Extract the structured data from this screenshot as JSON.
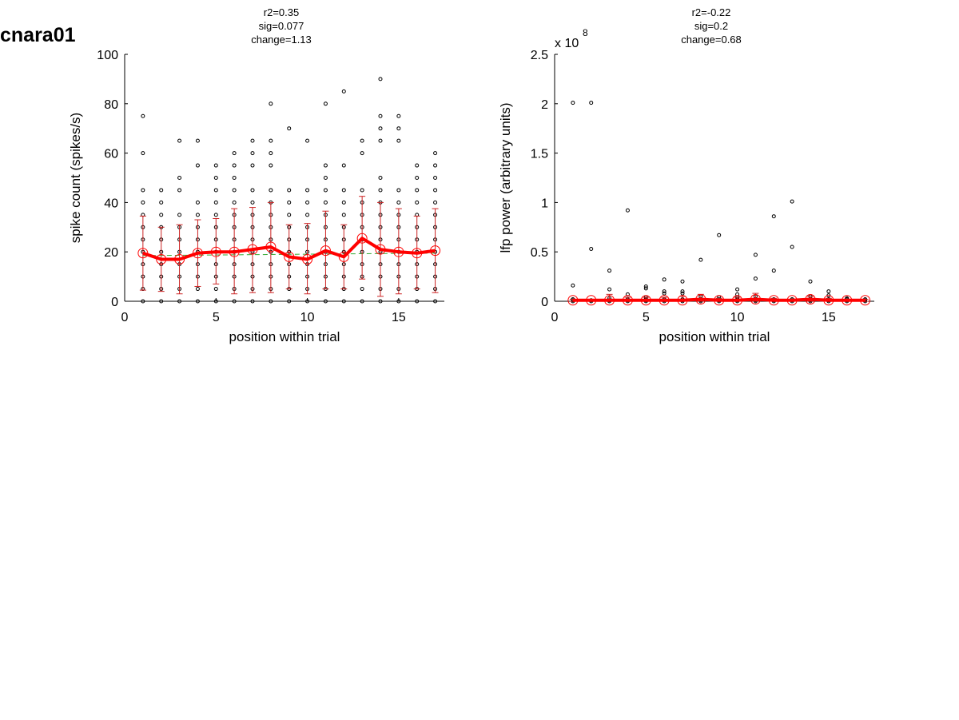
{
  "figure_title": "cnara01",
  "chart_data": [
    {
      "type": "scatter",
      "stats": [
        "r2=0.35",
        "sig=0.077",
        "change=1.13"
      ],
      "xlabel": "position within trial",
      "ylabel": "spike count (spikes/s)",
      "xlim": [
        0,
        17.5
      ],
      "ylim": [
        0,
        100
      ],
      "xticks": [
        0,
        5,
        10,
        15
      ],
      "yticks": [
        0,
        20,
        40,
        60,
        80,
        100
      ],
      "exponent_label": "",
      "points": [
        [
          1,
          [
            0,
            5,
            10,
            15,
            20,
            25,
            30,
            35,
            40,
            45,
            60,
            75
          ]
        ],
        [
          2,
          [
            0,
            5,
            10,
            15,
            20,
            25,
            30,
            35,
            40,
            45
          ]
        ],
        [
          3,
          [
            0,
            5,
            10,
            15,
            20,
            25,
            30,
            35,
            45,
            50,
            65
          ]
        ],
        [
          4,
          [
            0,
            5,
            10,
            15,
            20,
            25,
            30,
            35,
            40,
            55,
            65
          ]
        ],
        [
          5,
          [
            0,
            5,
            10,
            15,
            20,
            25,
            30,
            35,
            40,
            45,
            50,
            55
          ]
        ],
        [
          6,
          [
            0,
            5,
            10,
            15,
            20,
            25,
            30,
            35,
            40,
            45,
            50,
            55,
            60
          ]
        ],
        [
          7,
          [
            0,
            5,
            10,
            15,
            20,
            25,
            30,
            35,
            40,
            45,
            55,
            60,
            65
          ]
        ],
        [
          8,
          [
            0,
            5,
            10,
            15,
            20,
            25,
            30,
            35,
            40,
            45,
            55,
            60,
            65,
            80
          ]
        ],
        [
          9,
          [
            0,
            5,
            10,
            15,
            20,
            25,
            30,
            35,
            40,
            45,
            70
          ]
        ],
        [
          10,
          [
            0,
            5,
            10,
            15,
            20,
            25,
            30,
            35,
            40,
            45,
            65
          ]
        ],
        [
          11,
          [
            0,
            5,
            10,
            15,
            20,
            25,
            30,
            35,
            40,
            45,
            50,
            55,
            80
          ]
        ],
        [
          12,
          [
            0,
            5,
            10,
            15,
            20,
            25,
            30,
            35,
            40,
            45,
            55,
            85
          ]
        ],
        [
          13,
          [
            0,
            5,
            10,
            15,
            20,
            25,
            30,
            35,
            40,
            45,
            60,
            65
          ]
        ],
        [
          14,
          [
            0,
            5,
            10,
            15,
            20,
            25,
            30,
            35,
            40,
            45,
            50,
            65,
            70,
            75,
            90
          ]
        ],
        [
          15,
          [
            0,
            5,
            10,
            15,
            20,
            25,
            30,
            35,
            40,
            45,
            65,
            70,
            75
          ]
        ],
        [
          16,
          [
            0,
            5,
            10,
            15,
            20,
            25,
            30,
            35,
            40,
            45,
            50,
            55
          ]
        ],
        [
          17,
          [
            0,
            5,
            10,
            15,
            20,
            25,
            30,
            35,
            40,
            45,
            50,
            55,
            60
          ]
        ]
      ],
      "mean": [
        19.5,
        17,
        17,
        19.5,
        20,
        20,
        21,
        22,
        18,
        17,
        20.5,
        18,
        25.5,
        21,
        20,
        19.5,
        20.5
      ],
      "sd_low": [
        4.5,
        4,
        3,
        6,
        7,
        3,
        3.5,
        3.5,
        5,
        3,
        5,
        5,
        9,
        2,
        3,
        5,
        3.5
      ],
      "sd_high": [
        34.5,
        30,
        31,
        33,
        33.5,
        37.5,
        38,
        40,
        31,
        31.5,
        36.5,
        31,
        42.5,
        40,
        37.5,
        34.5,
        37.5
      ],
      "fit": [
        18.5,
        19.5
      ],
      "colors": {
        "mean": "#ff0000",
        "errorbar": "#cc2222",
        "fit": "#33aa33",
        "points": "#000000"
      }
    },
    {
      "type": "scatter",
      "stats": [
        "r2=-0.22",
        "sig=0.2",
        "change=0.68"
      ],
      "xlabel": "position within trial",
      "ylabel": "lfp power (arbitrary units)",
      "xlim": [
        0,
        17.5
      ],
      "ylim": [
        0,
        2.5
      ],
      "xticks": [
        0,
        5,
        10,
        15
      ],
      "yticks": [
        0,
        0.5,
        1,
        1.5,
        2,
        2.5
      ],
      "exponent_label": "x 10",
      "exponent_power": "8",
      "points": [
        [
          1,
          [
            0,
            0.01,
            0.02,
            0.16,
            2.01
          ]
        ],
        [
          2,
          [
            0,
            0.01,
            0.53,
            2.01
          ]
        ],
        [
          3,
          [
            0,
            0.01,
            0.03,
            0.12,
            0.31
          ]
        ],
        [
          4,
          [
            0,
            0.01,
            0.02,
            0.07,
            0.92
          ]
        ],
        [
          5,
          [
            0,
            0.01,
            0.02,
            0.04,
            0.13,
            0.15
          ]
        ],
        [
          6,
          [
            0,
            0.01,
            0.02,
            0.08,
            0.1,
            0.22
          ]
        ],
        [
          7,
          [
            0,
            0.01,
            0.02,
            0.08,
            0.1,
            0.2
          ]
        ],
        [
          8,
          [
            0,
            0.01,
            0.02,
            0.05,
            0.42
          ]
        ],
        [
          9,
          [
            0,
            0.01,
            0.02,
            0.04,
            0.67
          ]
        ],
        [
          10,
          [
            0,
            0.01,
            0.02,
            0.04,
            0.07,
            0.12
          ]
        ],
        [
          11,
          [
            0,
            0.01,
            0.02,
            0.05,
            0.23,
            0.47
          ]
        ],
        [
          12,
          [
            0,
            0.01,
            0.02,
            0.31,
            0.86
          ]
        ],
        [
          13,
          [
            0,
            0.01,
            0.02,
            0.55,
            1.01
          ]
        ],
        [
          14,
          [
            0,
            0.01,
            0.02,
            0.05,
            0.2
          ]
        ],
        [
          15,
          [
            0,
            0.01,
            0.02,
            0.06,
            0.1
          ]
        ],
        [
          16,
          [
            0,
            0.01,
            0.02,
            0.03
          ]
        ],
        [
          17,
          [
            0,
            0.01,
            0.02
          ]
        ]
      ],
      "mean": [
        0.01,
        0.01,
        0.01,
        0.01,
        0.01,
        0.01,
        0.01,
        0.02,
        0.01,
        0.01,
        0.02,
        0.01,
        0.01,
        0.02,
        0.01,
        0.01,
        0.01
      ],
      "sd_low": [
        0,
        0,
        0,
        0,
        0,
        0,
        0,
        0,
        0,
        0,
        0,
        0,
        0,
        0,
        0,
        0,
        0
      ],
      "sd_high": [
        0.02,
        0.02,
        0.07,
        0.04,
        0.04,
        0.04,
        0.05,
        0.07,
        0.03,
        0.04,
        0.08,
        0.03,
        0.02,
        0.05,
        0.03,
        0.02,
        0.02
      ],
      "fit": [
        0.01,
        0.01
      ],
      "colors": {
        "mean": "#ff0000",
        "errorbar": "#cc2222",
        "fit": "#33aa33",
        "points": "#000000"
      }
    }
  ]
}
